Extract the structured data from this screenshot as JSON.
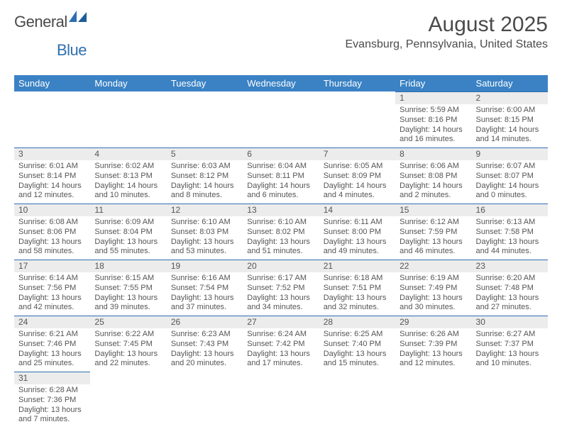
{
  "brand": {
    "part1": "General",
    "part2": "Blue"
  },
  "title": "August 2025",
  "location": "Evansburg, Pennsylvania, United States",
  "colors": {
    "header_bg": "#3a82c4",
    "header_text": "#ffffff",
    "daynum_bg": "#ececec",
    "rule": "#2f6fb0",
    "text": "#555555",
    "logo_blue": "#2f6fb0",
    "logo_grey": "#4a4a4a",
    "background": "#ffffff"
  },
  "weekdays": [
    "Sunday",
    "Monday",
    "Tuesday",
    "Wednesday",
    "Thursday",
    "Friday",
    "Saturday"
  ],
  "weeks": [
    [
      null,
      null,
      null,
      null,
      null,
      {
        "n": "1",
        "sr": "5:59 AM",
        "ss": "8:16 PM",
        "dl": "14 hours and 16 minutes."
      },
      {
        "n": "2",
        "sr": "6:00 AM",
        "ss": "8:15 PM",
        "dl": "14 hours and 14 minutes."
      }
    ],
    [
      {
        "n": "3",
        "sr": "6:01 AM",
        "ss": "8:14 PM",
        "dl": "14 hours and 12 minutes."
      },
      {
        "n": "4",
        "sr": "6:02 AM",
        "ss": "8:13 PM",
        "dl": "14 hours and 10 minutes."
      },
      {
        "n": "5",
        "sr": "6:03 AM",
        "ss": "8:12 PM",
        "dl": "14 hours and 8 minutes."
      },
      {
        "n": "6",
        "sr": "6:04 AM",
        "ss": "8:11 PM",
        "dl": "14 hours and 6 minutes."
      },
      {
        "n": "7",
        "sr": "6:05 AM",
        "ss": "8:09 PM",
        "dl": "14 hours and 4 minutes."
      },
      {
        "n": "8",
        "sr": "6:06 AM",
        "ss": "8:08 PM",
        "dl": "14 hours and 2 minutes."
      },
      {
        "n": "9",
        "sr": "6:07 AM",
        "ss": "8:07 PM",
        "dl": "14 hours and 0 minutes."
      }
    ],
    [
      {
        "n": "10",
        "sr": "6:08 AM",
        "ss": "8:06 PM",
        "dl": "13 hours and 58 minutes."
      },
      {
        "n": "11",
        "sr": "6:09 AM",
        "ss": "8:04 PM",
        "dl": "13 hours and 55 minutes."
      },
      {
        "n": "12",
        "sr": "6:10 AM",
        "ss": "8:03 PM",
        "dl": "13 hours and 53 minutes."
      },
      {
        "n": "13",
        "sr": "6:10 AM",
        "ss": "8:02 PM",
        "dl": "13 hours and 51 minutes."
      },
      {
        "n": "14",
        "sr": "6:11 AM",
        "ss": "8:00 PM",
        "dl": "13 hours and 49 minutes."
      },
      {
        "n": "15",
        "sr": "6:12 AM",
        "ss": "7:59 PM",
        "dl": "13 hours and 46 minutes."
      },
      {
        "n": "16",
        "sr": "6:13 AM",
        "ss": "7:58 PM",
        "dl": "13 hours and 44 minutes."
      }
    ],
    [
      {
        "n": "17",
        "sr": "6:14 AM",
        "ss": "7:56 PM",
        "dl": "13 hours and 42 minutes."
      },
      {
        "n": "18",
        "sr": "6:15 AM",
        "ss": "7:55 PM",
        "dl": "13 hours and 39 minutes."
      },
      {
        "n": "19",
        "sr": "6:16 AM",
        "ss": "7:54 PM",
        "dl": "13 hours and 37 minutes."
      },
      {
        "n": "20",
        "sr": "6:17 AM",
        "ss": "7:52 PM",
        "dl": "13 hours and 34 minutes."
      },
      {
        "n": "21",
        "sr": "6:18 AM",
        "ss": "7:51 PM",
        "dl": "13 hours and 32 minutes."
      },
      {
        "n": "22",
        "sr": "6:19 AM",
        "ss": "7:49 PM",
        "dl": "13 hours and 30 minutes."
      },
      {
        "n": "23",
        "sr": "6:20 AM",
        "ss": "7:48 PM",
        "dl": "13 hours and 27 minutes."
      }
    ],
    [
      {
        "n": "24",
        "sr": "6:21 AM",
        "ss": "7:46 PM",
        "dl": "13 hours and 25 minutes."
      },
      {
        "n": "25",
        "sr": "6:22 AM",
        "ss": "7:45 PM",
        "dl": "13 hours and 22 minutes."
      },
      {
        "n": "26",
        "sr": "6:23 AM",
        "ss": "7:43 PM",
        "dl": "13 hours and 20 minutes."
      },
      {
        "n": "27",
        "sr": "6:24 AM",
        "ss": "7:42 PM",
        "dl": "13 hours and 17 minutes."
      },
      {
        "n": "28",
        "sr": "6:25 AM",
        "ss": "7:40 PM",
        "dl": "13 hours and 15 minutes."
      },
      {
        "n": "29",
        "sr": "6:26 AM",
        "ss": "7:39 PM",
        "dl": "13 hours and 12 minutes."
      },
      {
        "n": "30",
        "sr": "6:27 AM",
        "ss": "7:37 PM",
        "dl": "13 hours and 10 minutes."
      }
    ],
    [
      {
        "n": "31",
        "sr": "6:28 AM",
        "ss": "7:36 PM",
        "dl": "13 hours and 7 minutes."
      },
      null,
      null,
      null,
      null,
      null,
      null
    ]
  ],
  "labels": {
    "sunrise": "Sunrise:",
    "sunset": "Sunset:",
    "daylight": "Daylight:"
  }
}
